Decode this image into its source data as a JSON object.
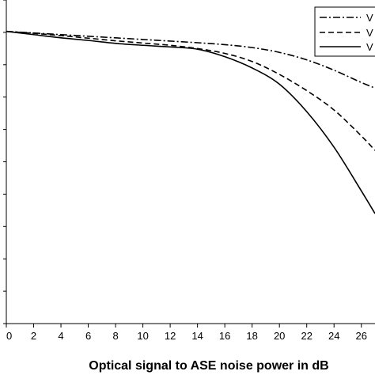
{
  "chart_data": {
    "type": "line",
    "xlabel": "Optical signal to ASE noise power in dB",
    "ylabel": "",
    "xlim": [
      0,
      27
    ],
    "ylim": [
      0,
      1
    ],
    "x_ticks": [
      "0",
      "2",
      "4",
      "6",
      "8",
      "10",
      "12",
      "14",
      "16",
      "18",
      "20",
      "22",
      "24",
      "26"
    ],
    "y_tick_count": 10,
    "grid": false,
    "legend": {
      "placement": "top-right",
      "entries": [
        {
          "label": "V",
          "style": "dash-dot"
        },
        {
          "label": "V",
          "style": "dashed"
        },
        {
          "label": "V",
          "style": "solid"
        }
      ]
    },
    "series": [
      {
        "style": "dash-dot",
        "x": [
          0,
          2,
          4,
          6,
          8,
          10,
          12,
          14,
          16,
          18,
          20,
          22,
          24,
          26,
          27
        ],
        "y": [
          0.903,
          0.898,
          0.893,
          0.888,
          0.883,
          0.878,
          0.873,
          0.868,
          0.862,
          0.853,
          0.838,
          0.815,
          0.783,
          0.745,
          0.728
        ]
      },
      {
        "style": "dashed",
        "x": [
          0,
          2,
          4,
          6,
          8,
          10,
          12,
          14,
          16,
          18,
          20,
          22,
          24,
          26,
          27
        ],
        "y": [
          0.903,
          0.897,
          0.89,
          0.882,
          0.874,
          0.867,
          0.86,
          0.85,
          0.835,
          0.81,
          0.77,
          0.72,
          0.66,
          0.58,
          0.535
        ]
      },
      {
        "style": "solid",
        "x": [
          0,
          2,
          4,
          6,
          8,
          10,
          12,
          14,
          16,
          18,
          20,
          22,
          24,
          26,
          27
        ],
        "y": [
          0.903,
          0.893,
          0.883,
          0.875,
          0.866,
          0.86,
          0.855,
          0.848,
          0.825,
          0.79,
          0.74,
          0.655,
          0.545,
          0.41,
          0.34
        ]
      }
    ]
  }
}
